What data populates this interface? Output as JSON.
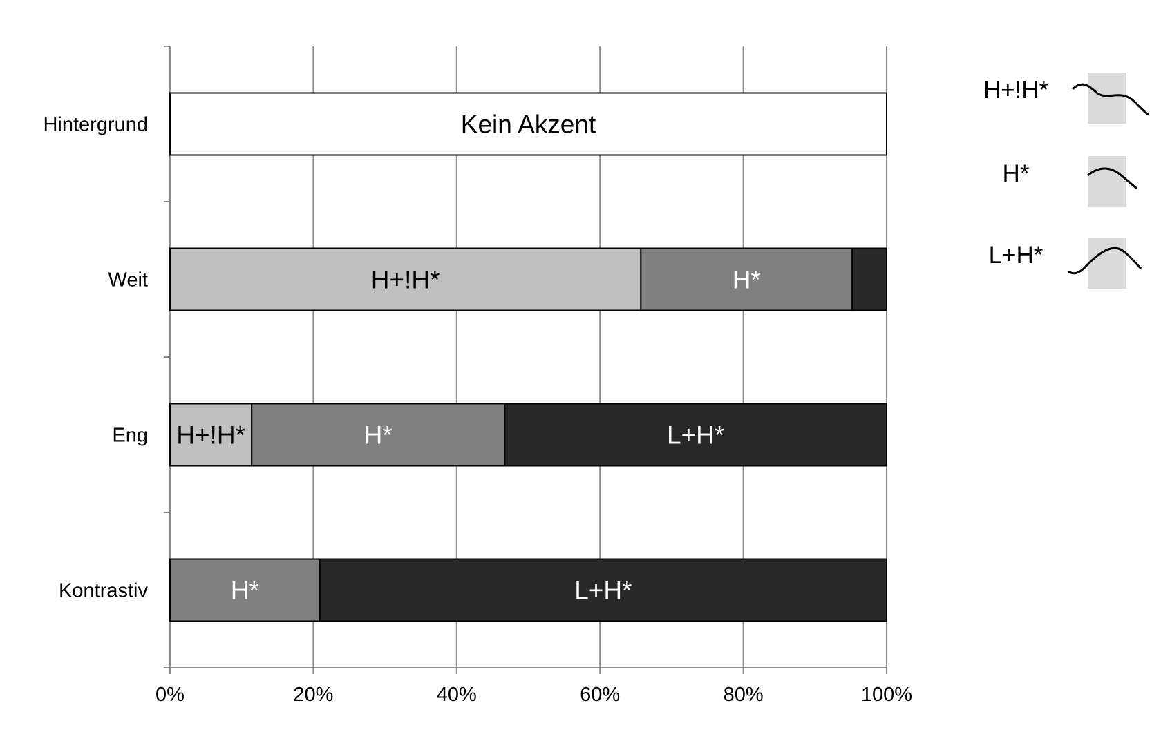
{
  "chart_data": {
    "type": "bar",
    "orientation": "horizontal",
    "stacked": true,
    "categories": [
      "Hintergrund",
      "Weit",
      "Eng",
      "Kontrastiv"
    ],
    "x_tick_labels": [
      "0%",
      "20%",
      "40%",
      "60%",
      "80%",
      "100%"
    ],
    "xlim": [
      0,
      100
    ],
    "grid": "vertical",
    "series": [
      {
        "name": "Kein Akzent",
        "color": "#ffffff",
        "text_color": "#000000",
        "values": [
          100,
          0,
          0,
          0
        ]
      },
      {
        "name": "H+!H*",
        "color": "#c0c0c0",
        "text_color": "#000000",
        "values": [
          0,
          65.7,
          11.4,
          0
        ]
      },
      {
        "name": "H*",
        "color": "#808080",
        "text_color": "#ffffff",
        "values": [
          0,
          29.5,
          35.3,
          20.9
        ]
      },
      {
        "name": "L+H*",
        "color": "#282828",
        "text_color": "#ffffff",
        "values": [
          0,
          4.8,
          53.3,
          79.1
        ]
      }
    ],
    "segment_labels": [
      {
        "category": "Hintergrund",
        "series": "Kein Akzent",
        "text": "Kein Akzent"
      },
      {
        "category": "Weit",
        "series": "H+!H*",
        "text": "H+!H*"
      },
      {
        "category": "Weit",
        "series": "H*",
        "text": "H*"
      },
      {
        "category": "Eng",
        "series": "H+!H*",
        "text": "H+!H*"
      },
      {
        "category": "Eng",
        "series": "H*",
        "text": "H*"
      },
      {
        "category": "Eng",
        "series": "L+H*",
        "text": "L+H*"
      },
      {
        "category": "Kontrastiv",
        "series": "H*",
        "text": "H*"
      },
      {
        "category": "Kontrastiv",
        "series": "L+H*",
        "text": "L+H*"
      }
    ],
    "legend": {
      "placement": "right",
      "items": [
        {
          "label": "H+!H*",
          "icon": "high-downstep-contour-icon"
        },
        {
          "label": "H*",
          "icon": "peak-fall-contour-icon"
        },
        {
          "label": "L+H*",
          "icon": "rise-fall-contour-icon"
        }
      ]
    }
  }
}
